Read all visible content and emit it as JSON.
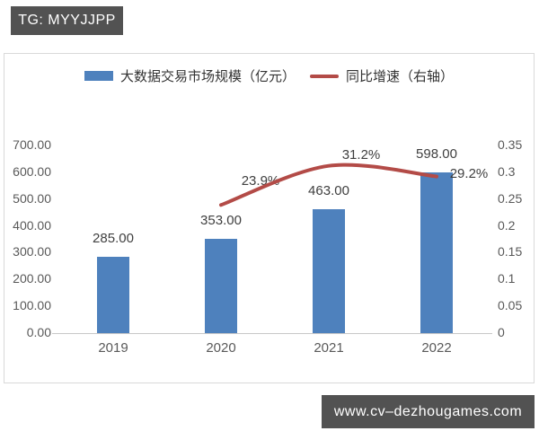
{
  "header_badge": {
    "text": "TG: MYYJJPP"
  },
  "footer_badge": {
    "text": "www.cv–dezhougames.com"
  },
  "colors": {
    "bar": "#4e81bd",
    "line": "#b34b47",
    "badge_bg": "#525252",
    "axis_text": "#595959",
    "data_label_text": "#3f3f3f",
    "chart_border": "#d9d9d9"
  },
  "chart_data": {
    "type": "bar",
    "title": "",
    "grid": false,
    "categories": [
      "2019",
      "2020",
      "2021",
      "2022"
    ],
    "series": [
      {
        "name": "大数据交易市场规模（亿元）",
        "type": "bar",
        "axis": "left",
        "values": [
          285,
          353,
          463,
          598
        ],
        "data_labels": [
          "285.00",
          "353.00",
          "463.00",
          "598.00"
        ],
        "color": "#4e81bd"
      },
      {
        "name": "同比增速（右轴）",
        "type": "line",
        "axis": "right",
        "smooth": true,
        "values": [
          null,
          0.239,
          0.312,
          0.292
        ],
        "data_labels": [
          null,
          "23.9%",
          "31.2%",
          "29.2%"
        ],
        "color": "#b34b47"
      }
    ],
    "left_axis": {
      "min": 0,
      "max": 700,
      "tick_labels": [
        "700.00",
        "600.00",
        "500.00",
        "400.00",
        "300.00",
        "200.00",
        "100.00",
        "0.00"
      ]
    },
    "right_axis": {
      "min": 0,
      "max": 0.35,
      "tick_labels": [
        "0.35",
        "0.3",
        "0.25",
        "0.2",
        "0.15",
        "0.1",
        "0.05",
        "0"
      ]
    },
    "legend": {
      "position": "top"
    }
  }
}
